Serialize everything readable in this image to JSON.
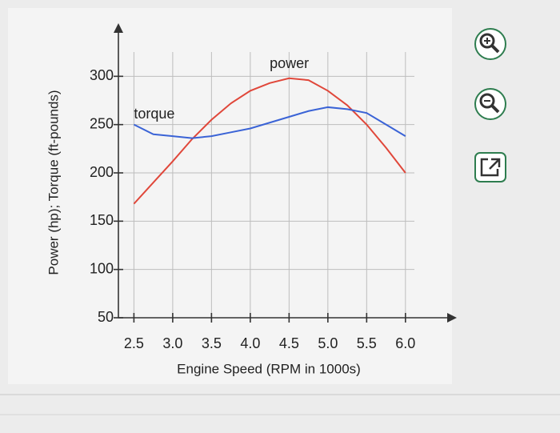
{
  "chart_data": {
    "type": "line",
    "x_label": "Engine Speed (RPM in 1000s)",
    "y_label": "Power (hp); Torque (ft-pounds)",
    "x": [
      2.5,
      2.75,
      3.0,
      3.25,
      3.5,
      3.75,
      4.0,
      4.25,
      4.5,
      4.75,
      5.0,
      5.25,
      5.5,
      5.75,
      6.0
    ],
    "series": [
      {
        "name": "power",
        "color": "#e0473a",
        "values": [
          168,
          190,
          212,
          235,
          255,
          272,
          285,
          293,
          298,
          296,
          285,
          270,
          250,
          226,
          200
        ]
      },
      {
        "name": "torque",
        "color": "#3a63d6",
        "values": [
          250,
          240,
          238,
          236,
          238,
          242,
          246,
          252,
          258,
          264,
          268,
          266,
          262,
          250,
          238
        ]
      }
    ],
    "xlim": [
      2.3,
      6.6
    ],
    "xticks": [
      2.5,
      {
        "value": 3,
        "label": "3.0"
      },
      3.5,
      {
        "value": 4,
        "label": "4.0"
      },
      4.5,
      {
        "value": 5,
        "label": "5.0"
      },
      5.5,
      {
        "value": 6,
        "label": "6.0"
      }
    ],
    "ylim": [
      50,
      350
    ],
    "yticks": [
      50,
      100,
      150,
      200,
      250,
      300
    ],
    "grid": true
  }
}
